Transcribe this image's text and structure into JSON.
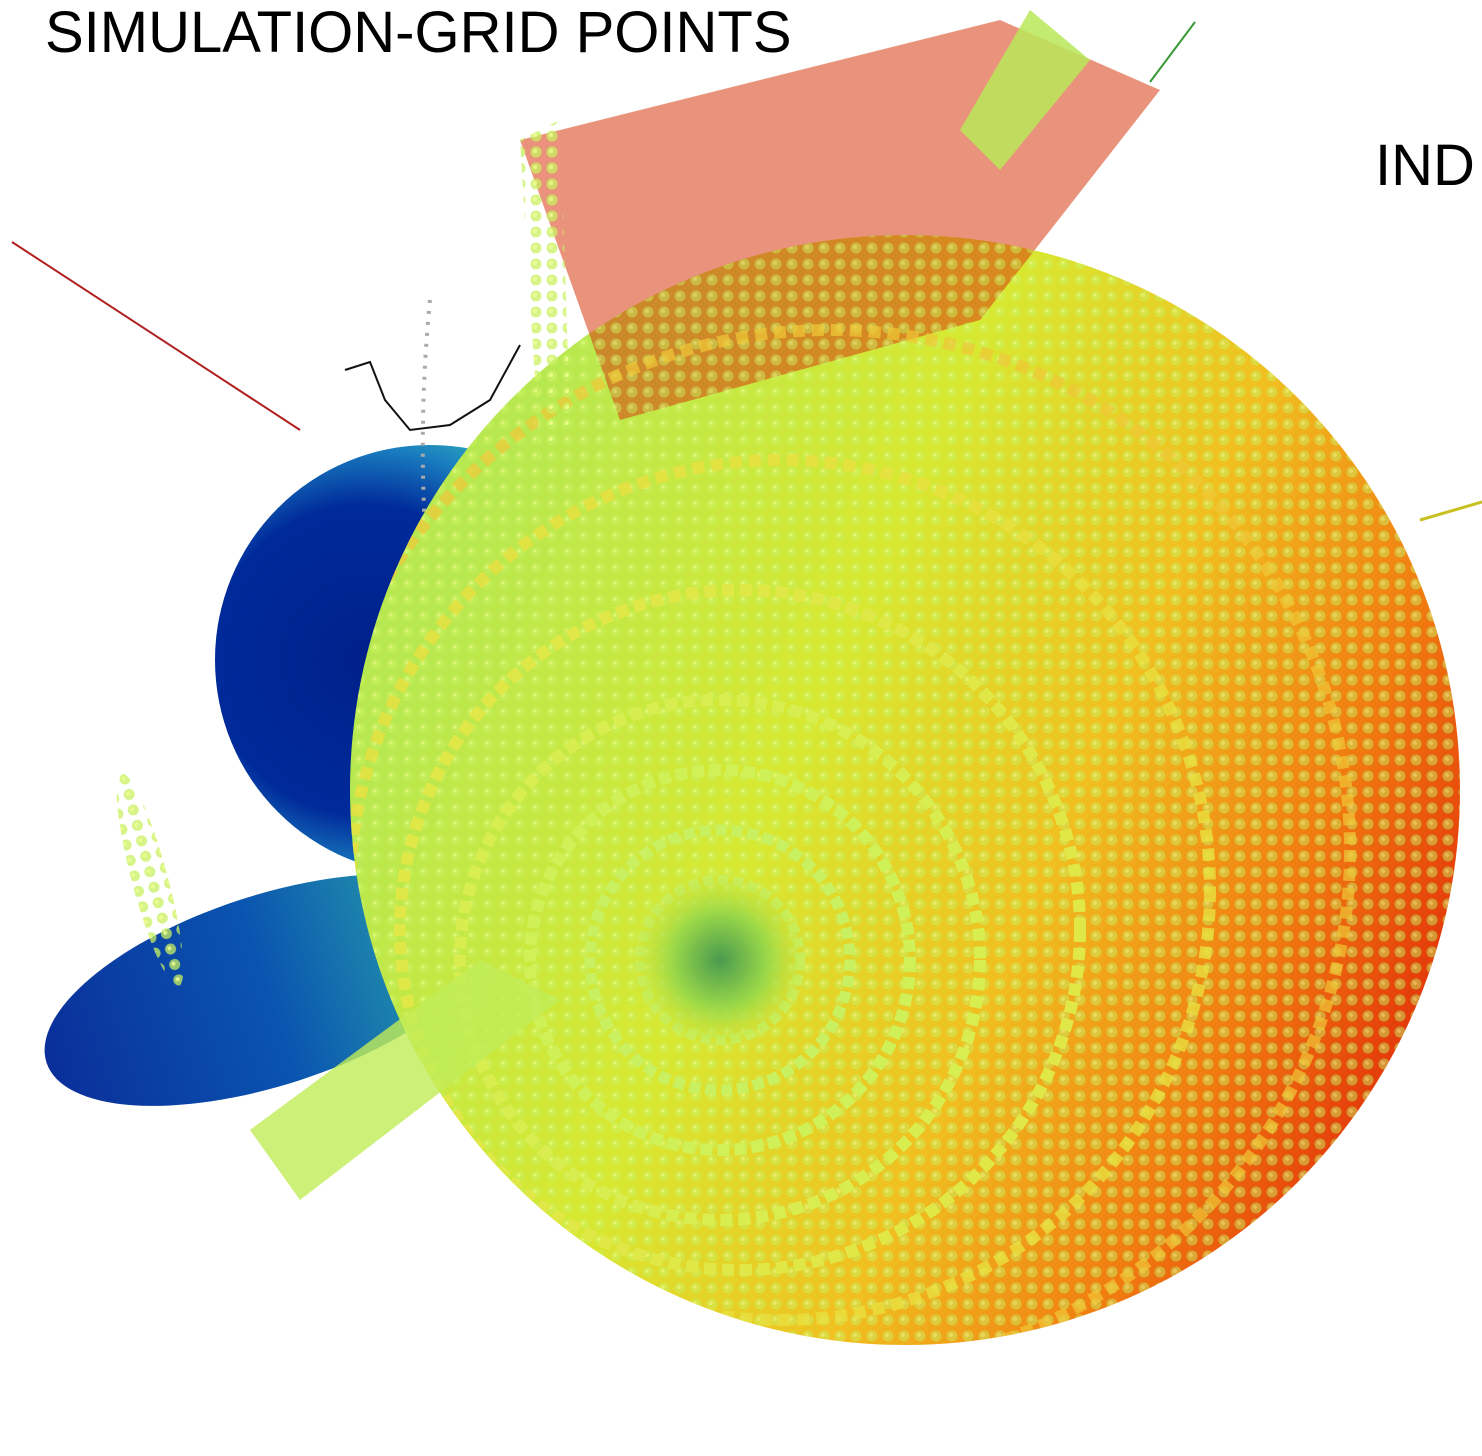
{
  "labels": {
    "title": "SIMULATION-GRID POINTS",
    "side_label": "IND"
  }
}
